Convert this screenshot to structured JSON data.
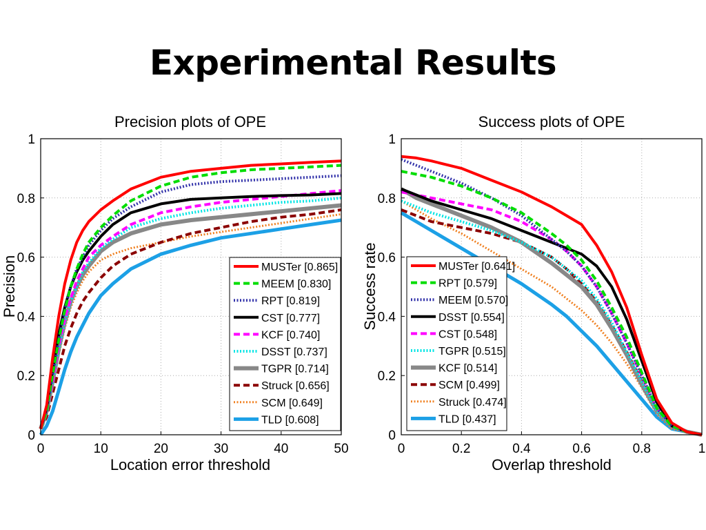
{
  "slide": {
    "title": "Experimental Results"
  },
  "chart_data": [
    {
      "type": "line",
      "title": "Precision plots of OPE",
      "xlabel": "Location error threshold",
      "ylabel": "Precision",
      "xlim": [
        0,
        50
      ],
      "ylim": [
        0,
        1
      ],
      "xticks": [
        "0",
        "10",
        "20",
        "30",
        "40",
        "50"
      ],
      "yticks": [
        "0",
        "0.2",
        "0.4",
        "0.6",
        "0.8",
        "1"
      ],
      "grid": true,
      "legend_position": "bottom-right",
      "x": [
        0,
        1,
        2,
        3,
        4,
        5,
        6,
        7,
        8,
        10,
        12,
        15,
        20,
        25,
        30,
        35,
        40,
        45,
        50
      ],
      "series": [
        {
          "name": "MUSTer",
          "score": "0.865",
          "legend": "MUSTer [0.865]",
          "color": "#ff0000",
          "style": "solid",
          "width": 4,
          "values": [
            0.02,
            0.1,
            0.26,
            0.4,
            0.51,
            0.59,
            0.65,
            0.69,
            0.72,
            0.76,
            0.79,
            0.83,
            0.87,
            0.89,
            0.9,
            0.91,
            0.915,
            0.92,
            0.925
          ]
        },
        {
          "name": "MEEM",
          "score": "0.830",
          "legend": "MEEM [0.830]",
          "color": "#00dd00",
          "style": "dash",
          "width": 4,
          "values": [
            0.02,
            0.08,
            0.2,
            0.32,
            0.42,
            0.5,
            0.56,
            0.61,
            0.65,
            0.7,
            0.74,
            0.79,
            0.84,
            0.87,
            0.885,
            0.895,
            0.9,
            0.905,
            0.91
          ]
        },
        {
          "name": "RPT",
          "score": "0.819",
          "legend": "RPT [0.819]",
          "color": "#3333aa",
          "style": "dot",
          "width": 4,
          "values": [
            0.02,
            0.08,
            0.2,
            0.32,
            0.42,
            0.5,
            0.56,
            0.6,
            0.64,
            0.69,
            0.73,
            0.77,
            0.82,
            0.845,
            0.855,
            0.86,
            0.865,
            0.87,
            0.875
          ]
        },
        {
          "name": "CST",
          "score": "0.777",
          "legend": "CST [0.777]",
          "color": "#000000",
          "style": "solid",
          "width": 4,
          "values": [
            0.02,
            0.09,
            0.22,
            0.34,
            0.43,
            0.5,
            0.55,
            0.59,
            0.62,
            0.67,
            0.71,
            0.75,
            0.78,
            0.795,
            0.8,
            0.805,
            0.808,
            0.81,
            0.815
          ]
        },
        {
          "name": "KCF",
          "score": "0.740",
          "legend": "KCF [0.740]",
          "color": "#ff00ff",
          "style": "dash",
          "width": 4,
          "values": [
            0.02,
            0.08,
            0.18,
            0.3,
            0.39,
            0.46,
            0.52,
            0.56,
            0.6,
            0.64,
            0.67,
            0.71,
            0.75,
            0.77,
            0.785,
            0.795,
            0.805,
            0.815,
            0.825
          ]
        },
        {
          "name": "DSST",
          "score": "0.737",
          "legend": "DSST [0.737]",
          "color": "#00e5e5",
          "style": "dot",
          "width": 4,
          "values": [
            0.02,
            0.08,
            0.18,
            0.29,
            0.38,
            0.45,
            0.5,
            0.55,
            0.58,
            0.63,
            0.66,
            0.7,
            0.73,
            0.75,
            0.765,
            0.775,
            0.785,
            0.79,
            0.8
          ]
        },
        {
          "name": "TGPR",
          "score": "0.714",
          "legend": "TGPR [0.714]",
          "color": "#888888",
          "style": "solid",
          "width": 6,
          "values": [
            0.02,
            0.08,
            0.18,
            0.29,
            0.38,
            0.45,
            0.5,
            0.54,
            0.57,
            0.62,
            0.65,
            0.68,
            0.71,
            0.725,
            0.735,
            0.745,
            0.755,
            0.765,
            0.775
          ]
        },
        {
          "name": "Struck",
          "score": "0.656",
          "legend": "Struck [0.656]",
          "color": "#8b0000",
          "style": "dash",
          "width": 4,
          "values": [
            0.02,
            0.06,
            0.14,
            0.22,
            0.3,
            0.36,
            0.41,
            0.45,
            0.48,
            0.53,
            0.57,
            0.61,
            0.65,
            0.68,
            0.7,
            0.72,
            0.735,
            0.745,
            0.76
          ]
        },
        {
          "name": "SCM",
          "score": "0.649",
          "legend": "SCM [0.649]",
          "color": "#f08020",
          "style": "dot",
          "width": 3,
          "values": [
            0.02,
            0.07,
            0.17,
            0.27,
            0.36,
            0.43,
            0.48,
            0.52,
            0.55,
            0.59,
            0.61,
            0.63,
            0.65,
            0.67,
            0.685,
            0.7,
            0.715,
            0.73,
            0.745
          ]
        },
        {
          "name": "TLD",
          "score": "0.608",
          "legend": "TLD [0.608]",
          "color": "#1ca0e6",
          "style": "solid",
          "width": 5,
          "values": [
            0.0,
            0.03,
            0.08,
            0.15,
            0.22,
            0.28,
            0.33,
            0.37,
            0.41,
            0.47,
            0.51,
            0.56,
            0.61,
            0.64,
            0.665,
            0.68,
            0.695,
            0.71,
            0.725
          ]
        }
      ]
    },
    {
      "type": "line",
      "title": "Success plots of OPE",
      "xlabel": "Overlap threshold",
      "ylabel": "Success rate",
      "xlim": [
        0,
        1
      ],
      "ylim": [
        0,
        1
      ],
      "xticks": [
        "0",
        "0.2",
        "0.4",
        "0.6",
        "0.8",
        "1"
      ],
      "yticks": [
        "0",
        "0.2",
        "0.4",
        "0.6",
        "0.8",
        "1"
      ],
      "grid": true,
      "legend_position": "bottom-left",
      "x": [
        0,
        0.05,
        0.1,
        0.2,
        0.3,
        0.4,
        0.5,
        0.55,
        0.6,
        0.65,
        0.7,
        0.75,
        0.8,
        0.85,
        0.9,
        0.95,
        1.0
      ],
      "series": [
        {
          "name": "MUSTer",
          "score": "0.641",
          "legend": "MUSTer [0.641]",
          "color": "#ff0000",
          "style": "solid",
          "width": 4,
          "values": [
            0.94,
            0.935,
            0.925,
            0.9,
            0.86,
            0.82,
            0.77,
            0.74,
            0.71,
            0.64,
            0.55,
            0.43,
            0.27,
            0.12,
            0.04,
            0.01,
            0.0
          ]
        },
        {
          "name": "RPT",
          "score": "0.579",
          "legend": "RPT [0.579]",
          "color": "#00dd00",
          "style": "dash",
          "width": 4,
          "values": [
            0.89,
            0.88,
            0.87,
            0.84,
            0.8,
            0.75,
            0.68,
            0.64,
            0.59,
            0.52,
            0.43,
            0.33,
            0.21,
            0.09,
            0.03,
            0.01,
            0.0
          ]
        },
        {
          "name": "MEEM",
          "score": "0.570",
          "legend": "MEEM [0.570]",
          "color": "#3333aa",
          "style": "dot",
          "width": 4,
          "values": [
            0.93,
            0.91,
            0.89,
            0.85,
            0.8,
            0.74,
            0.66,
            0.62,
            0.57,
            0.5,
            0.41,
            0.31,
            0.2,
            0.09,
            0.03,
            0.01,
            0.0
          ]
        },
        {
          "name": "DSST",
          "score": "0.554",
          "legend": "DSST [0.554]",
          "color": "#000000",
          "style": "solid",
          "width": 4,
          "values": [
            0.83,
            0.81,
            0.79,
            0.76,
            0.73,
            0.69,
            0.65,
            0.63,
            0.61,
            0.57,
            0.5,
            0.39,
            0.25,
            0.11,
            0.03,
            0.01,
            0.0
          ]
        },
        {
          "name": "CST",
          "score": "0.548",
          "legend": "CST [0.548]",
          "color": "#ff00ff",
          "style": "dash",
          "width": 4,
          "values": [
            0.82,
            0.81,
            0.8,
            0.78,
            0.76,
            0.72,
            0.66,
            0.62,
            0.57,
            0.5,
            0.41,
            0.31,
            0.2,
            0.09,
            0.03,
            0.01,
            0.0
          ]
        },
        {
          "name": "TGPR",
          "score": "0.515",
          "legend": "TGPR [0.515]",
          "color": "#00e5e5",
          "style": "dot",
          "width": 4,
          "values": [
            0.79,
            0.77,
            0.75,
            0.72,
            0.69,
            0.65,
            0.6,
            0.56,
            0.52,
            0.46,
            0.38,
            0.28,
            0.18,
            0.08,
            0.03,
            0.01,
            0.0
          ]
        },
        {
          "name": "KCF",
          "score": "0.514",
          "legend": "KCF [0.514]",
          "color": "#888888",
          "style": "solid",
          "width": 6,
          "values": [
            0.83,
            0.8,
            0.78,
            0.74,
            0.7,
            0.65,
            0.58,
            0.54,
            0.5,
            0.44,
            0.36,
            0.27,
            0.17,
            0.08,
            0.03,
            0.01,
            0.0
          ]
        },
        {
          "name": "SCM",
          "score": "0.499",
          "legend": "SCM [0.499]",
          "color": "#8b0000",
          "style": "dash",
          "width": 4,
          "values": [
            0.76,
            0.74,
            0.72,
            0.7,
            0.68,
            0.65,
            0.6,
            0.56,
            0.51,
            0.45,
            0.37,
            0.28,
            0.18,
            0.08,
            0.03,
            0.01,
            0.0
          ]
        },
        {
          "name": "Struck",
          "score": "0.474",
          "legend": "Struck [0.474]",
          "color": "#f08020",
          "style": "dot",
          "width": 3,
          "values": [
            0.79,
            0.76,
            0.73,
            0.68,
            0.62,
            0.56,
            0.5,
            0.46,
            0.42,
            0.37,
            0.31,
            0.24,
            0.16,
            0.07,
            0.02,
            0.01,
            0.0
          ]
        },
        {
          "name": "TLD",
          "score": "0.437",
          "legend": "TLD [0.437]",
          "color": "#1ca0e6",
          "style": "solid",
          "width": 5,
          "values": [
            0.75,
            0.72,
            0.69,
            0.63,
            0.57,
            0.51,
            0.44,
            0.4,
            0.35,
            0.3,
            0.24,
            0.18,
            0.12,
            0.06,
            0.02,
            0.01,
            0.0
          ]
        }
      ]
    }
  ]
}
